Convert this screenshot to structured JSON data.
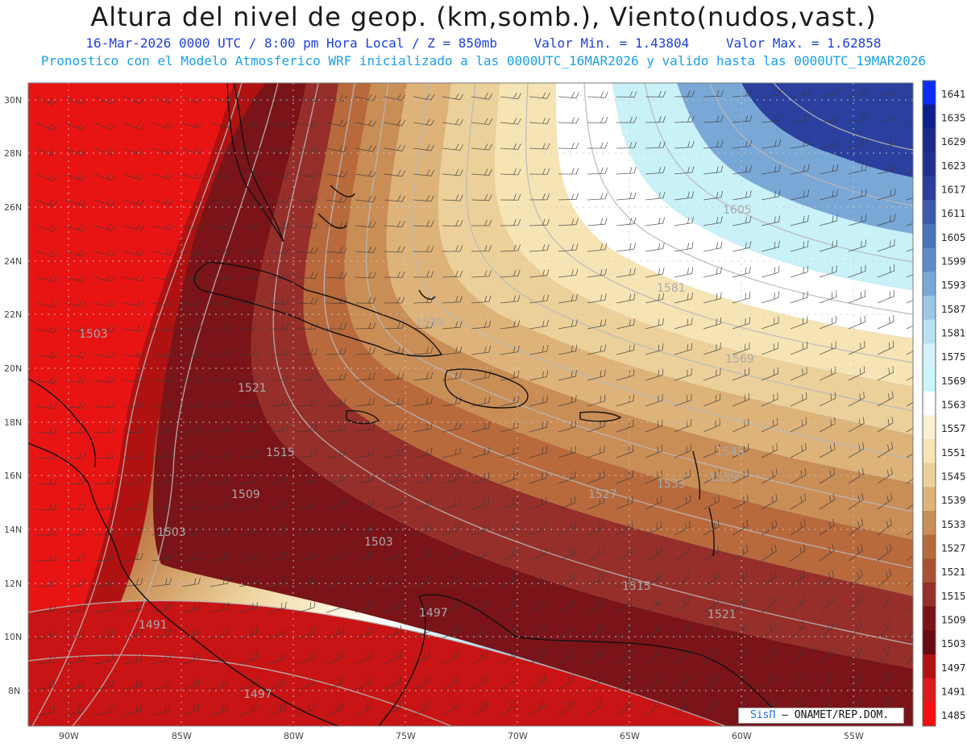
{
  "header": {
    "title": "Altura del nivel de geop. (km,somb.), Viento(nudos,vast.)",
    "date_time": "16-Mar-2026  0000 UTC / 8:00 pm Hora Local / Z = 850mb",
    "min_value": "Valor Min. = 1.43804",
    "max_value": "Valor Max. = 1.62858",
    "model_line": "Pronostico con el Modelo Atmosferico WRF inicializado a las 0000UTC_16MAR2026 y valido hasta las  0000UTC_19MAR2026"
  },
  "axes": {
    "lat_labels": [
      "30N",
      "28N",
      "26N",
      "24N",
      "22N",
      "20N",
      "18N",
      "16N",
      "14N",
      "12N",
      "10N",
      "8N"
    ],
    "lon_labels": [
      "90W",
      "85W",
      "80W",
      "75W",
      "70W",
      "65W",
      "60W",
      "55W"
    ]
  },
  "colorbar": {
    "levels": [
      "1641",
      "1635",
      "1629",
      "1623",
      "1617",
      "1611",
      "1605",
      "1599",
      "1593",
      "1587",
      "1581",
      "1575",
      "1569",
      "1563",
      "1557",
      "1551",
      "1545",
      "1539",
      "1533",
      "1527",
      "1521",
      "1515",
      "1509",
      "1503",
      "1497",
      "1491",
      "1485"
    ],
    "colors": [
      "#0a2ef5",
      "#0f1e8c",
      "#1a2a8a",
      "#1f2f92",
      "#2a3f9e",
      "#3a5aae",
      "#4a72bb",
      "#5f8cc8",
      "#7aa8d6",
      "#9cc8e4",
      "#b8e2ef",
      "#d4f2f7",
      "#c9f6fb",
      "#ffffff",
      "#fbf1d2",
      "#f6e4b4",
      "#ecd09a",
      "#deb37a",
      "#c98d56",
      "#b86a3d",
      "#a85234",
      "#962f2a",
      "#7a1418",
      "#6a0a12",
      "#b01212",
      "#dc1c1c",
      "#f51010"
    ]
  },
  "contour_labels": [
    {
      "text": "1605"
    },
    {
      "text": "1581"
    },
    {
      "text": "1569"
    },
    {
      "text": "1539"
    },
    {
      "text": "1545"
    },
    {
      "text": "1539"
    },
    {
      "text": "1533"
    },
    {
      "text": "1527"
    },
    {
      "text": "1521"
    },
    {
      "text": "1515"
    },
    {
      "text": "1509"
    },
    {
      "text": "1503"
    },
    {
      "text": "1503"
    },
    {
      "text": "1503"
    },
    {
      "text": "1497"
    },
    {
      "text": "1497"
    },
    {
      "text": "1491"
    },
    {
      "text": "1515"
    },
    {
      "text": "1521"
    }
  ],
  "credit": {
    "brand": "SisΠ",
    "org": "– ONAMET/REP.DOM."
  }
}
